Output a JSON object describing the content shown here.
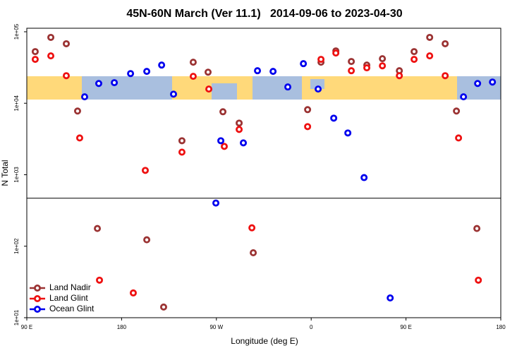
{
  "chart_data": {
    "type": "scatter",
    "title": "45N-60N March (Ver 11.1)   2014-09-06 to 2023-04-30",
    "x_label": "Longitude (deg E)",
    "y_label": "N Total",
    "xlim": [
      90,
      540
    ],
    "ylim": [
      10,
      112000
    ],
    "y_log": true,
    "xticks": [
      {
        "value": 90,
        "label": "90 E"
      },
      {
        "value": 180,
        "label": "180"
      },
      {
        "value": 270,
        "label": "90 W"
      },
      {
        "value": 360,
        "label": "0"
      },
      {
        "value": 450,
        "label": "90 E"
      },
      {
        "value": 540,
        "label": "180"
      }
    ],
    "yticks": [
      {
        "value": 10,
        "label": "1e+01"
      },
      {
        "value": 100,
        "label": "1e+02"
      },
      {
        "value": 1000,
        "label": "1e+03"
      },
      {
        "value": 10000,
        "label": "1e+04"
      },
      {
        "value": 100000,
        "label": "1e+05"
      }
    ],
    "reference_line": 470,
    "legend": "lower left",
    "series": [
      {
        "name": "Land Nadir",
        "color": "#9b3333",
        "x": [
          98.0,
          112.8,
          127.5,
          138.2,
          157.0,
          203.9,
          219.9,
          237.3,
          248.0,
          262.1,
          276.2,
          291.6,
          305.0,
          356.6,
          369.3,
          383.4,
          398.1,
          412.8,
          427.6,
          443.7,
          457.7,
          472.5,
          487.2,
          497.9,
          517.3
        ],
        "values": [
          52800,
          83400,
          68000,
          7780,
          177,
          123,
          14.1,
          2990,
          37500,
          27200,
          7600,
          5280,
          81,
          8140,
          37500,
          54000,
          38400,
          34200,
          42000,
          28500,
          52800,
          83400,
          68000,
          7780,
          177
        ]
      },
      {
        "name": "Land Glint",
        "color": "#ee1111",
        "x": [
          98.0,
          112.8,
          127.5,
          140.2,
          159.0,
          191.1,
          202.5,
          237.3,
          248.0,
          262.8,
          277.5,
          291.6,
          303.7,
          356.6,
          369.3,
          383.4,
          398.1,
          412.8,
          427.6,
          443.7,
          457.7,
          472.5,
          487.2,
          499.9,
          518.7
        ],
        "values": [
          41100,
          46000,
          24300,
          3270,
          33.5,
          22.2,
          1150,
          2070,
          23800,
          15800,
          2490,
          4300,
          181,
          4710,
          41100,
          50400,
          28500,
          31300,
          33400,
          24300,
          41100,
          46000,
          24300,
          3270,
          33.5
        ]
      },
      {
        "name": "Ocean Glint",
        "color": "#0000ee",
        "x": [
          144.9,
          158.3,
          173.1,
          188.5,
          203.9,
          218.0,
          229.3,
          269.5,
          274.2,
          295.6,
          309.0,
          323.8,
          337.8,
          352.6,
          366.6,
          381.4,
          394.8,
          410.2,
          435.0,
          504.6,
          518.0,
          532.1
        ],
        "values": [
          12300,
          18900,
          19400,
          26000,
          27900,
          34200,
          13400,
          402,
          2990,
          2790,
          28500,
          27900,
          16900,
          35800,
          15800,
          6190,
          3840,
          912,
          18.9,
          12300,
          18900,
          19800
        ]
      }
    ]
  }
}
